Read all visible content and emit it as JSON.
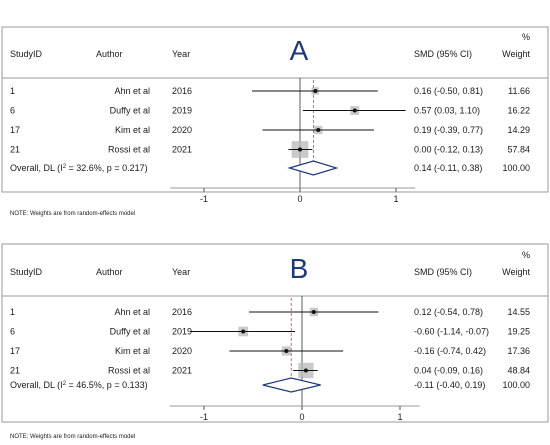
{
  "chart_data": [
    {
      "type": "forest",
      "panel_letter": "A",
      "headers": {
        "study": "StudyID",
        "author": "Author",
        "year": "Year",
        "effect": "SMD (95% CI)",
        "weight_unit": "%",
        "weight": "Weight"
      },
      "studies": [
        {
          "id": "1",
          "author": "Ahn et al",
          "year": "2016",
          "smd": 0.16,
          "lo": -0.5,
          "hi": 0.81,
          "ci_text": "0.16 (-0.50, 0.81)",
          "weight": "11.66"
        },
        {
          "id": "6",
          "author": "Duffy et al",
          "year": "2019",
          "smd": 0.57,
          "lo": 0.03,
          "hi": 1.1,
          "ci_text": "0.57 (0.03, 1.10)",
          "weight": "16.22"
        },
        {
          "id": "17",
          "author": "Kim et al",
          "year": "2020",
          "smd": 0.19,
          "lo": -0.39,
          "hi": 0.77,
          "ci_text": "0.19 (-0.39, 0.77)",
          "weight": "14.29"
        },
        {
          "id": "21",
          "author": "Rossi et al",
          "year": "2021",
          "smd": 0.0,
          "lo": -0.12,
          "hi": 0.13,
          "ci_text": "0.00 (-0.12, 0.13)",
          "weight": "57.84"
        }
      ],
      "overall": {
        "label_pre": "Overall, DL (I",
        "label_sup": "2",
        "label_post": " = 32.6%, p = 0.217)",
        "smd": 0.14,
        "lo": -0.11,
        "hi": 0.38,
        "ci_text": "0.14 (-0.11, 0.38)",
        "weight": "100.00"
      },
      "x_ticks": [
        {
          "value": -1,
          "label": "-1"
        },
        {
          "value": 0,
          "label": "0"
        },
        {
          "value": 1,
          "label": "1"
        }
      ],
      "note": "NOTE: Weights are from random-effects model"
    },
    {
      "type": "forest",
      "panel_letter": "B",
      "headers": {
        "study": "StudyID",
        "author": "Author",
        "year": "Year",
        "effect": "SMD (95% CI)",
        "weight_unit": "%",
        "weight": "Weight"
      },
      "studies": [
        {
          "id": "1",
          "author": "Ahn et al",
          "year": "2016",
          "smd": 0.12,
          "lo": -0.54,
          "hi": 0.78,
          "ci_text": "0.12 (-0.54, 0.78)",
          "weight": "14.55"
        },
        {
          "id": "6",
          "author": "Duffy et al",
          "year": "2019",
          "smd": -0.6,
          "lo": -1.14,
          "hi": -0.07,
          "ci_text": "-0.60 (-1.14, -0.07)",
          "weight": "19.25"
        },
        {
          "id": "17",
          "author": "Kim et al",
          "year": "2020",
          "smd": -0.16,
          "lo": -0.74,
          "hi": 0.42,
          "ci_text": "-0.16 (-0.74, 0.42)",
          "weight": "17.36"
        },
        {
          "id": "21",
          "author": "Rossi et al",
          "year": "2021",
          "smd": 0.04,
          "lo": -0.09,
          "hi": 0.16,
          "ci_text": "0.04 (-0.09, 0.16)",
          "weight": "48.84"
        }
      ],
      "overall": {
        "label_pre": "Overall, DL (I",
        "label_sup": "2",
        "label_post": " = 46.5%, p = 0.133)",
        "smd": -0.11,
        "lo": -0.4,
        "hi": 0.19,
        "ci_text": "-0.11 (-0.40, 0.19)",
        "weight": "100.00"
      },
      "x_ticks": [
        {
          "value": -1,
          "label": "-1"
        },
        {
          "value": 0,
          "label": "0"
        },
        {
          "value": 1,
          "label": "1"
        }
      ],
      "note": "NOTE: Weights are from random-effects model"
    }
  ],
  "colors": {
    "ci_line": "#111111",
    "box": "#b8b8b8",
    "diamond": "#1f3a7a",
    "dash": "#c0504d",
    "rule": "#9a9a9a",
    "frame": "#9a9a9a"
  }
}
